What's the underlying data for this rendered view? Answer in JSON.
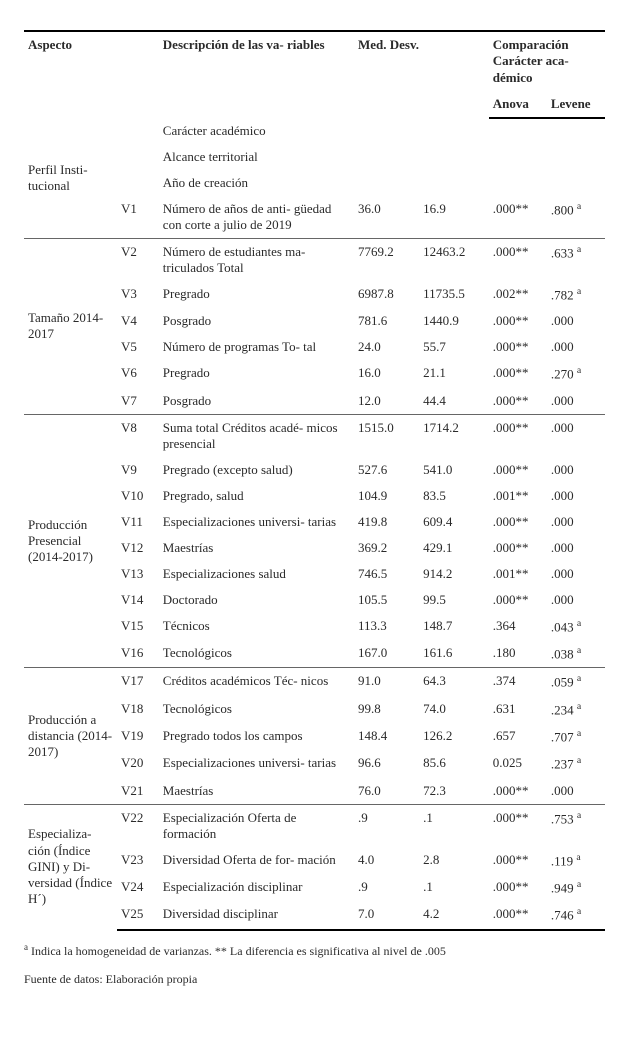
{
  "header": {
    "aspect": "Aspecto",
    "desc": "Descripción de las va-\nriables",
    "med_desv": "Med.\nDesv.",
    "comp": "Comparación\nCarácter aca-\ndémico",
    "anova": "Anova",
    "levene": "Levene"
  },
  "groups": [
    {
      "aspect": "Perfil Insti-\ntucional",
      "rows": [
        {
          "var": "",
          "desc": "Carácter académico",
          "med": "",
          "desv": "",
          "anova": "",
          "levene": ""
        },
        {
          "var": "",
          "desc": "Alcance territorial",
          "med": "",
          "desv": "",
          "anova": "",
          "levene": ""
        },
        {
          "var": "",
          "desc": "Año de creación",
          "med": "",
          "desv": "",
          "anova": "",
          "levene": ""
        },
        {
          "var": "V1",
          "desc": "Número de años de anti-\ngüedad con corte a julio de\n2019",
          "med": "36.0",
          "desv": "16.9",
          "anova": ".000**",
          "levene": ".800 ",
          "levene_sup": "a"
        }
      ]
    },
    {
      "aspect": "Tamaño\n2014-2017",
      "rows": [
        {
          "var": "V2",
          "desc": "Número de estudiantes ma-\ntriculados Total",
          "med": "7769.2",
          "desv": "12463.2",
          "anova": ".000**",
          "levene": ".633 ",
          "levene_sup": "a"
        },
        {
          "var": "V3",
          "desc": "Pregrado",
          "med": "6987.8",
          "desv": "11735.5",
          "anova": ".002**",
          "levene": ".782 ",
          "levene_sup": "a"
        },
        {
          "var": "V4",
          "desc": "Posgrado",
          "med": "781.6",
          "desv": "1440.9",
          "anova": ".000**",
          "levene": ".000"
        },
        {
          "var": "V5",
          "desc": "Número de programas To-\ntal",
          "med": "24.0",
          "desv": "55.7",
          "anova": ".000**",
          "levene": ".000"
        },
        {
          "var": "V6",
          "desc": "Pregrado",
          "med": "16.0",
          "desv": "21.1",
          "anova": ".000**",
          "levene": ".270 ",
          "levene_sup": "a"
        },
        {
          "var": "V7",
          "desc": "Posgrado",
          "med": "12.0",
          "desv": "44.4",
          "anova": ".000**",
          "levene": ".000"
        }
      ]
    },
    {
      "aspect": "Producción\nPresencial\n(2014-2017)",
      "rows": [
        {
          "var": "V8",
          "desc": "Suma total Créditos acadé-\nmicos presencial",
          "med": "1515.0",
          "desv": "1714.2",
          "anova": ".000**",
          "levene": ".000"
        },
        {
          "var": "V9",
          "desc": "Pregrado (excepto salud)",
          "med": "527.6",
          "desv": "541.0",
          "anova": ".000**",
          "levene": ".000"
        },
        {
          "var": "V10",
          "desc": "Pregrado, salud",
          "med": "104.9",
          "desv": "83.5",
          "anova": ".001**",
          "levene": ".000"
        },
        {
          "var": "V11",
          "desc": "Especializaciones universi-\ntarias",
          "med": "419.8",
          "desv": "609.4",
          "anova": ".000**",
          "levene": ".000"
        },
        {
          "var": "V12",
          "desc": "Maestrías",
          "med": "369.2",
          "desv": "429.1",
          "anova": ".000**",
          "levene": ".000"
        },
        {
          "var": "V13",
          "desc": "Especializaciones salud",
          "med": "746.5",
          "desv": "914.2",
          "anova": ".001**",
          "levene": ".000"
        },
        {
          "var": "V14",
          "desc": "Doctorado",
          "med": "105.5",
          "desv": "99.5",
          "anova": ".000**",
          "levene": ".000"
        },
        {
          "var": "V15",
          "desc": "Técnicos",
          "med": "113.3",
          "desv": "148.7",
          "anova": ".364",
          "levene": ".043 ",
          "levene_sup": "a"
        },
        {
          "var": "V16",
          "desc": "Tecnológicos",
          "med": "167.0",
          "desv": "161.6",
          "anova": ".180",
          "levene": ".038 ",
          "levene_sup": "a"
        }
      ]
    },
    {
      "aspect": "Producción\na distancia\n(2014-2017)",
      "rows": [
        {
          "var": "V17",
          "desc": "Créditos académicos Téc-\nnicos",
          "med": "91.0",
          "desv": "64.3",
          "anova": ".374",
          "levene": ".059 ",
          "levene_sup": "a"
        },
        {
          "var": "V18",
          "desc": "Tecnológicos",
          "med": "99.8",
          "desv": "74.0",
          "anova": ".631",
          "levene": ".234 ",
          "levene_sup": "a"
        },
        {
          "var": "V19",
          "desc": "Pregrado todos los campos",
          "med": "148.4",
          "desv": "126.2",
          "anova": ".657",
          "levene": ".707 ",
          "levene_sup": "a"
        },
        {
          "var": "V20",
          "desc": "Especializaciones universi-\ntarias",
          "med": "96.6",
          "desv": "85.6",
          "anova": "0.025",
          "levene": ".237 ",
          "levene_sup": "a"
        },
        {
          "var": "V21",
          "desc": "Maestrías",
          "med": "76.0",
          "desv": "72.3",
          "anova": ".000**",
          "levene": ".000"
        }
      ]
    },
    {
      "aspect": "Especializa-\nción (Índice\nGINI) y Di-\nversidad\n(Índice H´)",
      "rows": [
        {
          "var": "V22",
          "desc": "Especialización Oferta de\nformación",
          "med": ".9",
          "desv": ".1",
          "anova": ".000**",
          "levene": ".753 ",
          "levene_sup": "a"
        },
        {
          "var": "V23",
          "desc": "Diversidad Oferta de for-\nmación",
          "med": "4.0",
          "desv": "2.8",
          "anova": ".000**",
          "levene": ".119 ",
          "levene_sup": "a"
        },
        {
          "var": "V24",
          "desc": "Especialización disciplinar",
          "med": ".9",
          "desv": ".1",
          "anova": ".000**",
          "levene": ".949 ",
          "levene_sup": "a"
        },
        {
          "var": "V25",
          "desc": "Diversidad disciplinar",
          "med": "7.0",
          "desv": "4.2",
          "anova": ".000**",
          "levene": ".746 ",
          "levene_sup": "a"
        }
      ]
    }
  ],
  "footnotes": {
    "line1_prefix_sup": "a",
    "line1": " Indica la homogeneidad de varianzas. ** La diferencia es significativa al nivel de .005",
    "line2": "Fuente de datos: Elaboración propia"
  }
}
